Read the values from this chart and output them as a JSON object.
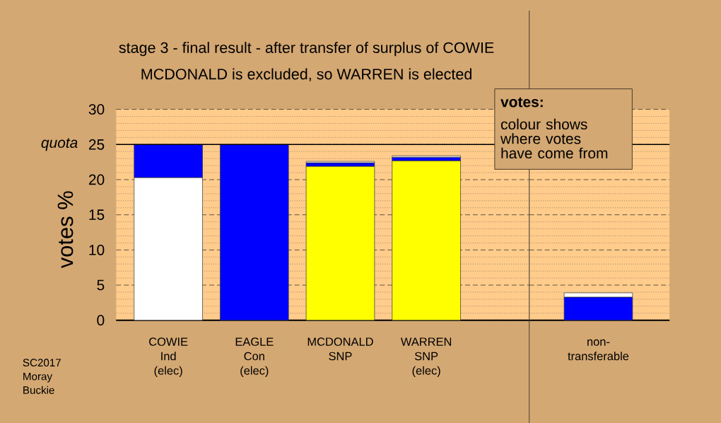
{
  "chart_data": [
    {
      "type": "bar",
      "title": "stage 3 - final result - after transfer of surplus of COWIE",
      "subtitle": "MCDONALD is excluded, so WARREN is elected",
      "ylabel": "votes %",
      "categories": [
        "COWIE\nInd\n(elec)",
        "EAGLE\nCon\n(elec)",
        "MCDONALD\nSNP",
        "WARREN\nSNP\n(elec)"
      ],
      "stacked": true,
      "series": [
        {
          "color": "#ffff00",
          "values": [
            null,
            null,
            21.9,
            22.7
          ]
        },
        {
          "color": "#ffffff",
          "values": [
            20.3,
            null,
            null,
            null
          ]
        },
        {
          "color": "#0000ff",
          "values": [
            4.7,
            25.0,
            0.5,
            0.5
          ]
        },
        {
          "color": "#ffffff",
          "values": [
            null,
            null,
            0.2,
            0.2
          ]
        }
      ],
      "ylim": [
        0,
        30
      ],
      "yticks": [
        0,
        {
          "value": 1,
          "label": null
        },
        {
          "value": 2,
          "label": null
        },
        {
          "value": 3,
          "label": null
        },
        {
          "value": 4,
          "label": null
        },
        5,
        {
          "value": 6,
          "label": null
        },
        {
          "value": 7,
          "label": null
        },
        {
          "value": 8,
          "label": null
        },
        {
          "value": 9,
          "label": null
        },
        10,
        {
          "value": 11,
          "label": null
        },
        {
          "value": 12,
          "label": null
        },
        {
          "value": 13,
          "label": null
        },
        {
          "value": 14,
          "label": null
        },
        15,
        {
          "value": 16,
          "label": null
        },
        {
          "value": 17,
          "label": null
        },
        {
          "value": 18,
          "label": null
        },
        {
          "value": 19,
          "label": null
        },
        20,
        {
          "value": 21,
          "label": null
        },
        {
          "value": 22,
          "label": null
        },
        {
          "value": 23,
          "label": null
        },
        {
          "value": 24,
          "label": null
        },
        25,
        {
          "value": 26,
          "label": null
        },
        {
          "value": 27,
          "label": null
        },
        {
          "value": 28,
          "label": null
        },
        {
          "value": 29,
          "label": null
        },
        30
      ],
      "grid": "y",
      "ref_lines": [
        {
          "axis": "y",
          "value": 25,
          "label": "quota",
          "color": "#000000"
        }
      ],
      "annotations": [
        "votes:",
        "colour shows\nwhere votes\nhave come from",
        "SC2017\nMoray\nBuckie"
      ]
    },
    {
      "type": "bar",
      "categories": [
        "non-\ntransferable"
      ],
      "stacked": true,
      "series": [
        {
          "color": "#0000ff",
          "values": [
            3.3
          ]
        },
        {
          "color": "#ffffff",
          "values": [
            0.6
          ]
        }
      ],
      "ylim": [
        0,
        30
      ],
      "yticks": [
        0,
        {
          "value": 1,
          "label": null
        },
        {
          "value": 2,
          "label": null
        },
        {
          "value": 3,
          "label": null
        },
        {
          "value": 4,
          "label": null
        },
        5,
        {
          "value": 6,
          "label": null
        },
        {
          "value": 7,
          "label": null
        },
        {
          "value": 8,
          "label": null
        },
        {
          "value": 9,
          "label": null
        },
        10,
        {
          "value": 11,
          "label": null
        },
        {
          "value": 12,
          "label": null
        },
        {
          "value": 13,
          "label": null
        },
        {
          "value": 14,
          "label": null
        },
        15,
        {
          "value": 16,
          "label": null
        },
        {
          "value": 17,
          "label": null
        },
        {
          "value": 18,
          "label": null
        },
        {
          "value": 19,
          "label": null
        },
        20,
        {
          "value": 21,
          "label": null
        },
        {
          "value": 22,
          "label": null
        },
        {
          "value": 23,
          "label": null
        },
        {
          "value": 24,
          "label": null
        },
        25,
        {
          "value": 26,
          "label": null
        },
        {
          "value": 27,
          "label": null
        },
        {
          "value": 28,
          "label": null
        },
        {
          "value": 29,
          "label": null
        },
        30
      ],
      "grid": "y",
      "ref_lines": [
        {
          "axis": "y",
          "value": 25,
          "color": "#000000"
        }
      ],
      "tick_labels": "x"
    }
  ]
}
